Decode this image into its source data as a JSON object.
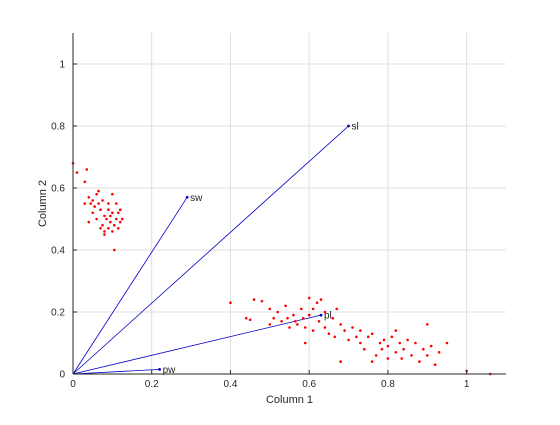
{
  "chart_data": {
    "type": "scatter",
    "title": "",
    "xlabel": "Column 1",
    "ylabel": "Column 2",
    "xlim": [
      0,
      1.1
    ],
    "ylim": [
      0,
      1.1
    ],
    "xticks": [
      0,
      0.2,
      0.4,
      0.6,
      0.8,
      1
    ],
    "yticks": [
      0,
      0.2,
      0.4,
      0.6,
      0.8,
      1
    ],
    "xtick_labels": [
      "0",
      "0.2",
      "0.4",
      "0.6",
      "0.8",
      "1"
    ],
    "ytick_labels": [
      "0",
      "0.2",
      "0.4",
      "0.6",
      "0.8",
      "1"
    ],
    "grid": true,
    "colors": {
      "vectors": "#0000cc",
      "points": "#ff0000",
      "axes": "#262626",
      "grid": "#dfdfdf"
    },
    "vectors": [
      {
        "name": "sl",
        "x": 0.7,
        "y": 0.8
      },
      {
        "name": "sw",
        "x": 0.29,
        "y": 0.57
      },
      {
        "name": "pl",
        "x": 0.63,
        "y": 0.19
      },
      {
        "name": "pw",
        "x": 0.22,
        "y": 0.015
      }
    ],
    "points": [
      [
        0.0,
        0.68
      ],
      [
        0.01,
        0.65
      ],
      [
        0.03,
        0.62
      ],
      [
        0.035,
        0.66
      ],
      [
        0.04,
        0.57
      ],
      [
        0.045,
        0.55
      ],
      [
        0.05,
        0.56
      ],
      [
        0.055,
        0.54
      ],
      [
        0.06,
        0.58
      ],
      [
        0.065,
        0.55
      ],
      [
        0.07,
        0.53
      ],
      [
        0.075,
        0.56
      ],
      [
        0.08,
        0.51
      ],
      [
        0.085,
        0.5
      ],
      [
        0.09,
        0.55
      ],
      [
        0.095,
        0.49
      ],
      [
        0.1,
        0.52
      ],
      [
        0.105,
        0.48
      ],
      [
        0.11,
        0.5
      ],
      [
        0.115,
        0.47
      ],
      [
        0.12,
        0.49
      ],
      [
        0.125,
        0.5
      ],
      [
        0.05,
        0.52
      ],
      [
        0.06,
        0.5
      ],
      [
        0.07,
        0.47
      ],
      [
        0.08,
        0.46
      ],
      [
        0.09,
        0.47
      ],
      [
        0.1,
        0.46
      ],
      [
        0.08,
        0.45
      ],
      [
        0.09,
        0.53
      ],
      [
        0.1,
        0.58
      ],
      [
        0.11,
        0.55
      ],
      [
        0.115,
        0.52
      ],
      [
        0.04,
        0.49
      ],
      [
        0.03,
        0.55
      ],
      [
        0.065,
        0.59
      ],
      [
        0.075,
        0.48
      ],
      [
        0.105,
        0.4
      ],
      [
        0.12,
        0.53
      ],
      [
        0.095,
        0.51
      ],
      [
        0.4,
        0.23
      ],
      [
        0.44,
        0.18
      ],
      [
        0.45,
        0.175
      ],
      [
        0.46,
        0.24
      ],
      [
        0.48,
        0.235
      ],
      [
        0.5,
        0.21
      ],
      [
        0.5,
        0.16
      ],
      [
        0.51,
        0.18
      ],
      [
        0.52,
        0.2
      ],
      [
        0.53,
        0.17
      ],
      [
        0.54,
        0.22
      ],
      [
        0.545,
        0.18
      ],
      [
        0.55,
        0.15
      ],
      [
        0.56,
        0.19
      ],
      [
        0.565,
        0.17
      ],
      [
        0.57,
        0.16
      ],
      [
        0.58,
        0.21
      ],
      [
        0.585,
        0.18
      ],
      [
        0.59,
        0.15
      ],
      [
        0.6,
        0.245
      ],
      [
        0.6,
        0.19
      ],
      [
        0.61,
        0.14
      ],
      [
        0.61,
        0.21
      ],
      [
        0.62,
        0.23
      ],
      [
        0.625,
        0.17
      ],
      [
        0.63,
        0.24
      ],
      [
        0.64,
        0.15
      ],
      [
        0.64,
        0.2
      ],
      [
        0.65,
        0.13
      ],
      [
        0.66,
        0.18
      ],
      [
        0.665,
        0.12
      ],
      [
        0.67,
        0.21
      ],
      [
        0.68,
        0.16
      ],
      [
        0.69,
        0.14
      ],
      [
        0.7,
        0.11
      ],
      [
        0.71,
        0.15
      ],
      [
        0.72,
        0.12
      ],
      [
        0.73,
        0.1
      ],
      [
        0.73,
        0.14
      ],
      [
        0.74,
        0.08
      ],
      [
        0.75,
        0.12
      ],
      [
        0.76,
        0.13
      ],
      [
        0.77,
        0.06
      ],
      [
        0.78,
        0.1
      ],
      [
        0.785,
        0.08
      ],
      [
        0.79,
        0.11
      ],
      [
        0.8,
        0.05
      ],
      [
        0.8,
        0.09
      ],
      [
        0.81,
        0.12
      ],
      [
        0.82,
        0.07
      ],
      [
        0.83,
        0.1
      ],
      [
        0.835,
        0.05
      ],
      [
        0.84,
        0.08
      ],
      [
        0.85,
        0.11
      ],
      [
        0.86,
        0.06
      ],
      [
        0.87,
        0.1
      ],
      [
        0.88,
        0.04
      ],
      [
        0.89,
        0.08
      ],
      [
        0.9,
        0.16
      ],
      [
        0.9,
        0.06
      ],
      [
        0.91,
        0.09
      ],
      [
        0.92,
        0.03
      ],
      [
        0.93,
        0.07
      ],
      [
        0.95,
        0.1
      ],
      [
        1.0,
        0.01
      ],
      [
        1.06,
        0.0
      ],
      [
        0.59,
        0.1
      ],
      [
        0.76,
        0.04
      ],
      [
        0.82,
        0.14
      ],
      [
        0.68,
        0.04
      ]
    ]
  }
}
